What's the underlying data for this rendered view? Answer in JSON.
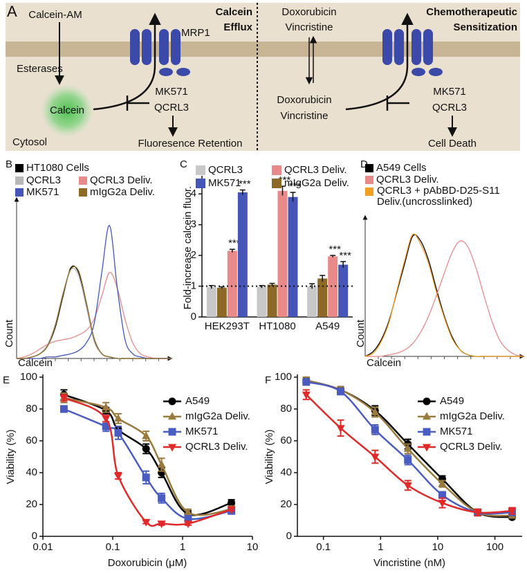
{
  "diagram": {
    "label": "A",
    "left": {
      "title": [
        "Calcein",
        "Efflux"
      ],
      "substrate": "Calcein-AM",
      "enzyme": "Esterases",
      "product": "Calcein",
      "transporter": "MRP1",
      "inhibitors": [
        "MK571",
        "QCRL3"
      ],
      "outcome": "Fluoresence Retention",
      "compartment": "Cytosol"
    },
    "right": {
      "title": [
        "Chemotherapeutic",
        "Sensitization"
      ],
      "drugs_outside": [
        "Doxorubicin",
        "Vincristine"
      ],
      "drugs_inside": [
        "Doxorubicin",
        "Vincristine"
      ],
      "inhibitors": [
        "MK571",
        "QCRL3"
      ],
      "outcome": "Cell Death"
    }
  },
  "chart_data": [
    {
      "type": "line",
      "label": "B",
      "xlabel": "Calcein",
      "ylabel": "Count",
      "axis_arrows": true,
      "x": [
        0,
        5,
        10,
        15,
        20,
        25,
        30,
        35,
        40,
        45,
        50,
        55,
        60,
        65,
        70,
        75,
        80,
        85,
        90,
        95,
        100
      ],
      "xlim": [
        0,
        100
      ],
      "ylim": [
        0,
        100
      ],
      "series": [
        {
          "name": "HT1080 Cells",
          "color": "#000000",
          "values": [
            0,
            0,
            1,
            3,
            8,
            20,
            40,
            58,
            55,
            35,
            12,
            3,
            1,
            0,
            0,
            0,
            0,
            0,
            0,
            0,
            0
          ]
        },
        {
          "name": "QCRL3",
          "color": "#b8b8b8",
          "values": [
            0,
            0,
            1,
            3,
            9,
            22,
            42,
            57,
            53,
            33,
            11,
            3,
            1,
            0,
            0,
            0,
            0,
            0,
            0,
            0,
            0
          ]
        },
        {
          "name": "QCRL3 Deliv.",
          "color": "#e88a8a",
          "values": [
            0,
            1,
            3,
            6,
            9,
            11,
            12,
            13,
            15,
            18,
            25,
            40,
            55,
            45,
            25,
            10,
            3,
            1,
            0,
            0,
            0
          ]
        },
        {
          "name": "MK571",
          "color": "#4556b8",
          "values": [
            0,
            0,
            0,
            0,
            1,
            1,
            2,
            3,
            5,
            10,
            22,
            55,
            85,
            45,
            12,
            3,
            1,
            0,
            0,
            0,
            0
          ]
        },
        {
          "name": "mIgG2a Deliv.",
          "color": "#8c6a25",
          "values": [
            0,
            0,
            1,
            3,
            8,
            21,
            41,
            57,
            56,
            36,
            13,
            3,
            1,
            0,
            0,
            0,
            0,
            0,
            0,
            0,
            0
          ]
        }
      ]
    },
    {
      "type": "bar",
      "label": "C",
      "ylabel": "Fold-increase calcein fluor.",
      "categories": [
        "HEK293T",
        "HT1080",
        "A549"
      ],
      "ylim": [
        0,
        4.5
      ],
      "yticks": [
        0,
        1,
        2,
        3,
        4
      ],
      "reference_line": 1,
      "series": [
        {
          "name": "QCRL3",
          "color": "#c8c8c8",
          "values": [
            0.97,
            0.98,
            1.0
          ],
          "errors": [
            0.05,
            0.04,
            0.08
          ]
        },
        {
          "name": "QCRL3 Deliv.",
          "color": "#e88a8a",
          "values": [
            2.15,
            4.1,
            1.97
          ],
          "errors": [
            0.05,
            0.15,
            0.03
          ],
          "significance": [
            "***",
            "***",
            "***"
          ]
        },
        {
          "name": "MK571",
          "color": "#4556b8",
          "values": [
            4.05,
            3.9,
            1.7
          ],
          "errors": [
            0.08,
            0.15,
            0.1
          ],
          "significance": [
            "***",
            "***",
            "***"
          ]
        },
        {
          "name": "mIgG2a Deliv.",
          "color": "#8c6a25",
          "values": [
            0.95,
            1.05,
            1.25
          ],
          "errors": [
            0.03,
            0.04,
            0.1
          ]
        }
      ]
    },
    {
      "type": "line",
      "label": "D",
      "xlabel": "Calcein",
      "ylabel": "Count",
      "axis_arrows": true,
      "x": [
        0,
        5,
        10,
        15,
        20,
        25,
        30,
        35,
        40,
        45,
        50,
        55,
        60,
        65,
        70,
        75,
        80,
        85,
        90,
        95,
        100
      ],
      "xlim": [
        0,
        100
      ],
      "ylim": [
        0,
        85
      ],
      "series": [
        {
          "name": "A549 Cells",
          "color": "#000000",
          "values": [
            0,
            3,
            10,
            22,
            40,
            58,
            75,
            72,
            60,
            42,
            25,
            12,
            4,
            1,
            0,
            0,
            0,
            0,
            0,
            0,
            0
          ]
        },
        {
          "name": "QCRL3 Deliv.",
          "color": "#e88a8a",
          "values": [
            0,
            0,
            0,
            1,
            2,
            4,
            8,
            15,
            25,
            38,
            52,
            65,
            72,
            68,
            55,
            38,
            22,
            10,
            4,
            1,
            0
          ]
        },
        {
          "name": "QCRL3 + pAbBD-D25-S11 Deliv.(uncrosslinked)",
          "color": "#f0a020",
          "values": [
            0,
            2,
            9,
            21,
            41,
            60,
            76,
            70,
            58,
            40,
            24,
            11,
            4,
            1,
            0,
            0,
            0,
            0,
            0,
            0,
            0
          ]
        }
      ]
    },
    {
      "type": "line",
      "label": "E",
      "xlabel": "Doxorubicin (μM)",
      "ylabel": "Viability (%)",
      "xscale": "log",
      "x": [
        0.02,
        0.08,
        0.12,
        0.3,
        0.5,
        1.2,
        5
      ],
      "xlim": [
        0.01,
        10
      ],
      "xticks": [
        0.01,
        0.1,
        1,
        10
      ],
      "ylim": [
        0,
        100
      ],
      "yticks": [
        0,
        20,
        40,
        60,
        80,
        100
      ],
      "series": [
        {
          "name": "A549",
          "color": "#000000",
          "marker": "circle",
          "values": [
            89,
            79,
            67,
            55,
            40,
            14,
            21
          ],
          "errors": [
            3,
            2,
            2,
            3,
            3,
            2,
            2
          ]
        },
        {
          "name": "mIgG2a Deliv.",
          "color": "#9a7a3c",
          "marker": "triangle-up",
          "values": [
            87,
            81,
            74,
            63,
            45,
            15,
            17
          ],
          "errors": [
            3,
            3,
            3,
            3,
            4,
            2,
            2
          ]
        },
        {
          "name": "MK571",
          "color": "#4a5cc0",
          "marker": "square",
          "values": [
            80,
            69,
            65,
            37,
            24,
            11,
            16
          ],
          "errors": [
            2,
            3,
            4,
            4,
            3,
            2,
            2
          ]
        },
        {
          "name": "QCRL3 Deliv.",
          "color": "#e02a2a",
          "marker": "triangle-down",
          "values": [
            87,
            74,
            38,
            9,
            8,
            8,
            17
          ],
          "errors": [
            2,
            2,
            2,
            1,
            1,
            1,
            1
          ]
        }
      ]
    },
    {
      "type": "line",
      "label": "F",
      "xlabel": "Vincristine (nM)",
      "ylabel": "Viability (%)",
      "xscale": "log",
      "x": [
        0.05,
        0.2,
        0.8,
        3,
        12,
        50,
        200
      ],
      "xlim": [
        0.035,
        300
      ],
      "xticks": [
        0.1,
        1,
        10,
        100
      ],
      "ylim": [
        0,
        100
      ],
      "yticks": [
        0,
        20,
        40,
        60,
        80,
        100
      ],
      "series": [
        {
          "name": "A549",
          "color": "#000000",
          "marker": "circle",
          "values": [
            98,
            92,
            79,
            58,
            36,
            15,
            12
          ],
          "errors": [
            2,
            2,
            3,
            3,
            2,
            2,
            1
          ]
        },
        {
          "name": "mIgG2a Deliv.",
          "color": "#9a7a3c",
          "marker": "triangle-up",
          "values": [
            98,
            92,
            78,
            55,
            33,
            15,
            13
          ],
          "errors": [
            2,
            2,
            3,
            3,
            2,
            2,
            1
          ]
        },
        {
          "name": "MK571",
          "color": "#4a5cc0",
          "marker": "square",
          "values": [
            97,
            91,
            67,
            48,
            26,
            15,
            15
          ],
          "errors": [
            2,
            2,
            3,
            3,
            2,
            2,
            1
          ]
        },
        {
          "name": "QCRL3 Deliv.",
          "color": "#e02a2a",
          "marker": "triangle-down",
          "values": [
            89,
            68,
            50,
            32,
            21,
            15,
            16
          ],
          "errors": [
            3,
            5,
            4,
            3,
            3,
            2,
            2
          ]
        }
      ]
    }
  ]
}
